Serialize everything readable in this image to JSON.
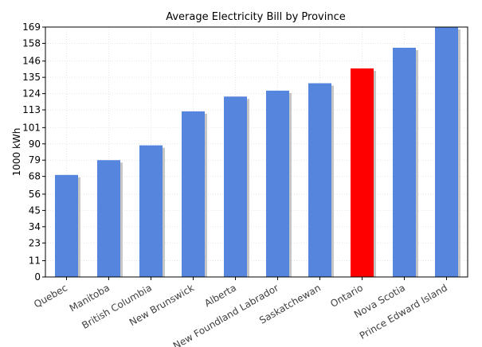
{
  "chart_data": {
    "type": "bar",
    "title": "Average Electricity Bill by Province",
    "xlabel": "",
    "ylabel": "1000 kWh",
    "ylim": [
      0,
      169
    ],
    "yticks": [
      "0",
      "11",
      "23",
      "34",
      "45",
      "56",
      "68",
      "79",
      "90",
      "101",
      "113",
      "124",
      "135",
      "146",
      "158",
      "169"
    ],
    "grid": true,
    "categories": [
      "Quebec",
      "Manitoba",
      "British Columbia",
      "New Brunswick",
      "Alberta",
      "New Foundland Labrador",
      "Saskatchewan",
      "Ontario",
      "Nova Scotia",
      "Prince Edward Island"
    ],
    "values": [
      69,
      79,
      89,
      112,
      122,
      126,
      131,
      141,
      155,
      169
    ],
    "colors": {
      "bar": "#5585dc",
      "highlight": "#ff0000",
      "highlight_category": "Ontario",
      "shadow": "#c6c6c6",
      "grid": "#e6e6e6",
      "axis": "#000000"
    }
  }
}
